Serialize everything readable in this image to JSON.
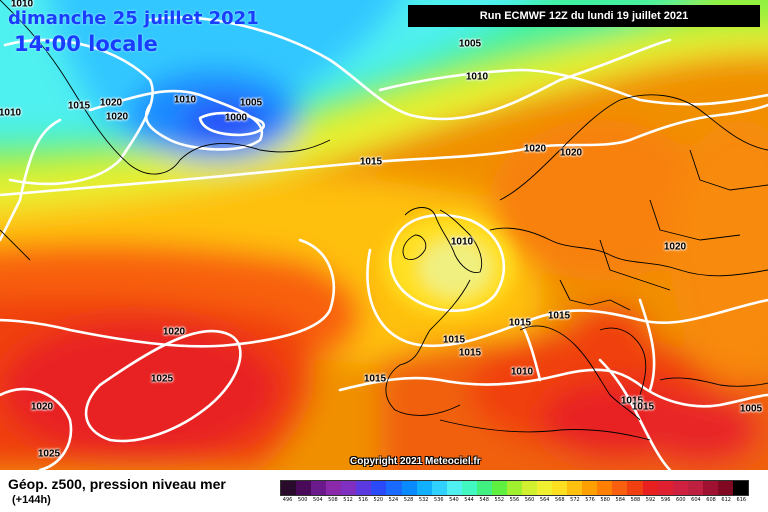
{
  "header": {
    "date_text": "dimanche 25 juillet 2021",
    "time_text": "14:00 locale",
    "run_text": "Run ECMWF 12Z du lundi 19 juillet 2021"
  },
  "copyright": "Copyright 2021 Meteociel.fr",
  "footer": {
    "title": "Géop. z500, pression niveau mer",
    "lead_time": "(+144h)"
  },
  "colors": {
    "isobar": "#ffffff",
    "coastline": "#000000",
    "run_box": "#000000"
  },
  "isobar_labels": [
    {
      "text": "1010"
    },
    {
      "text": "1005"
    },
    {
      "text": "1010"
    },
    {
      "text": "1015"
    },
    {
      "text": "1020"
    },
    {
      "text": "1020"
    },
    {
      "text": "1010"
    },
    {
      "text": "1005"
    },
    {
      "text": "1000"
    },
    {
      "text": "1015"
    },
    {
      "text": "1020"
    },
    {
      "text": "1020"
    },
    {
      "text": "1010"
    },
    {
      "text": "1020"
    },
    {
      "text": "1020"
    },
    {
      "text": "1015"
    },
    {
      "text": "1015"
    },
    {
      "text": "1015"
    },
    {
      "text": "1025"
    },
    {
      "text": "1015"
    },
    {
      "text": "1010"
    },
    {
      "text": "1015"
    },
    {
      "text": "1020"
    },
    {
      "text": "1025"
    },
    {
      "text": "1015"
    },
    {
      "text": "1015"
    },
    {
      "text": "1005"
    },
    {
      "text": "1010"
    }
  ],
  "scale": {
    "ticks": [
      "496",
      "500",
      "504",
      "508",
      "512",
      "516",
      "520",
      "524",
      "528",
      "532",
      "536",
      "540",
      "544",
      "548",
      "552",
      "556",
      "560",
      "564",
      "568",
      "572",
      "576",
      "580",
      "584",
      "588",
      "592",
      "596",
      "600",
      "604",
      "608",
      "612",
      "616"
    ],
    "colors": [
      "#2a0a2a",
      "#4a0a5a",
      "#6a1a8a",
      "#8a2aaa",
      "#8030c0",
      "#5a3ae0",
      "#2a4af8",
      "#1a6aff",
      "#0a8aff",
      "#10b0ff",
      "#30d0ff",
      "#50f0f0",
      "#40f8c0",
      "#40f080",
      "#60f040",
      "#a0f030",
      "#d0f030",
      "#f0f030",
      "#ffe020",
      "#ffc010",
      "#ffa000",
      "#ff8000",
      "#f86010",
      "#f04010",
      "#e82020",
      "#e02030",
      "#d02040",
      "#c02040",
      "#a01030",
      "#800820",
      "#000000"
    ]
  }
}
